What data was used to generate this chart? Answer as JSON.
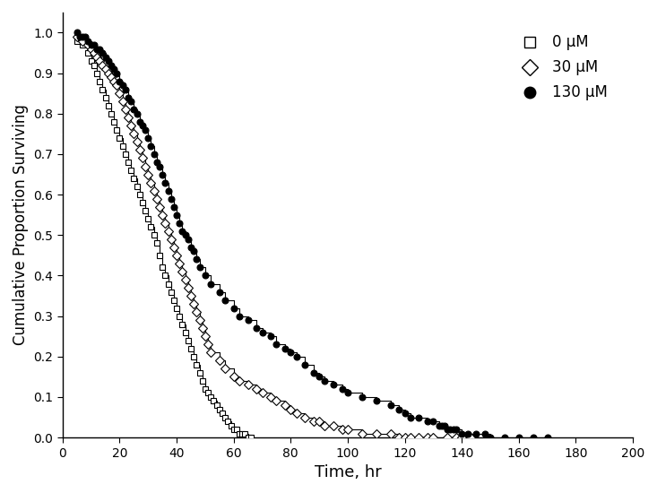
{
  "title": "",
  "xlabel": "Time, hr",
  "ylabel": "Cumulative Proportion Surviving",
  "xlim": [
    0,
    200
  ],
  "ylim": [
    0,
    1.05
  ],
  "xticks": [
    0,
    20,
    40,
    60,
    80,
    100,
    120,
    140,
    160,
    180,
    200
  ],
  "yticks": [
    0.0,
    0.1,
    0.2,
    0.3,
    0.4,
    0.5,
    0.6,
    0.7,
    0.8,
    0.9,
    1.0
  ],
  "legend_labels": [
    "0 μM",
    "30 μM",
    "130 μM"
  ],
  "legend_markers": [
    "s",
    "D",
    "o"
  ],
  "legend_markerfacecolors": [
    "white",
    "white",
    "black"
  ],
  "background_color": "#ffffff",
  "group0_times": [
    5,
    7,
    9,
    10,
    11,
    12,
    13,
    14,
    15,
    16,
    17,
    18,
    19,
    20,
    21,
    22,
    23,
    24,
    25,
    26,
    27,
    28,
    29,
    30,
    31,
    32,
    33,
    34,
    35,
    36,
    37,
    38,
    39,
    40,
    41,
    42,
    43,
    44,
    45,
    46,
    47,
    48,
    49,
    50,
    51,
    52,
    53,
    54,
    55,
    56,
    57,
    58,
    59,
    60,
    61,
    62,
    63,
    64,
    65,
    66
  ],
  "group0_surv": [
    0.98,
    0.97,
    0.95,
    0.93,
    0.92,
    0.9,
    0.88,
    0.86,
    0.84,
    0.82,
    0.8,
    0.78,
    0.76,
    0.74,
    0.72,
    0.7,
    0.68,
    0.66,
    0.64,
    0.62,
    0.6,
    0.58,
    0.56,
    0.54,
    0.52,
    0.5,
    0.48,
    0.45,
    0.42,
    0.4,
    0.38,
    0.36,
    0.34,
    0.32,
    0.3,
    0.28,
    0.26,
    0.24,
    0.22,
    0.2,
    0.18,
    0.16,
    0.14,
    0.12,
    0.11,
    0.1,
    0.09,
    0.08,
    0.07,
    0.06,
    0.05,
    0.04,
    0.03,
    0.02,
    0.02,
    0.01,
    0.01,
    0.01,
    0.0,
    0.0
  ],
  "group1_times": [
    5,
    7,
    9,
    10,
    11,
    12,
    13,
    14,
    15,
    16,
    17,
    18,
    19,
    20,
    21,
    22,
    23,
    24,
    25,
    26,
    27,
    28,
    29,
    30,
    31,
    32,
    33,
    34,
    35,
    36,
    37,
    38,
    39,
    40,
    41,
    42,
    43,
    44,
    45,
    46,
    47,
    48,
    49,
    50,
    51,
    52,
    55,
    57,
    60,
    62,
    65,
    68,
    70,
    73,
    75,
    78,
    80,
    82,
    85,
    88,
    90,
    92,
    95,
    98,
    100,
    105,
    110,
    115,
    118,
    120,
    122,
    125,
    128,
    130,
    135,
    138,
    140,
    143
  ],
  "group1_surv": [
    0.99,
    0.98,
    0.97,
    0.96,
    0.95,
    0.94,
    0.93,
    0.92,
    0.91,
    0.9,
    0.89,
    0.88,
    0.87,
    0.85,
    0.83,
    0.81,
    0.79,
    0.77,
    0.75,
    0.73,
    0.71,
    0.69,
    0.67,
    0.65,
    0.63,
    0.61,
    0.59,
    0.57,
    0.55,
    0.53,
    0.51,
    0.49,
    0.47,
    0.45,
    0.43,
    0.41,
    0.39,
    0.37,
    0.35,
    0.33,
    0.31,
    0.29,
    0.27,
    0.25,
    0.23,
    0.21,
    0.19,
    0.17,
    0.15,
    0.14,
    0.13,
    0.12,
    0.11,
    0.1,
    0.09,
    0.08,
    0.07,
    0.06,
    0.05,
    0.04,
    0.04,
    0.03,
    0.03,
    0.02,
    0.02,
    0.01,
    0.01,
    0.01,
    0.0,
    0.0,
    0.0,
    0.0,
    0.0,
    0.0,
    0.0,
    0.0,
    0.0,
    0.0
  ],
  "group2_times": [
    5,
    6,
    7,
    8,
    9,
    10,
    11,
    12,
    13,
    14,
    15,
    16,
    17,
    18,
    19,
    20,
    21,
    22,
    23,
    24,
    25,
    26,
    27,
    28,
    29,
    30,
    31,
    32,
    33,
    34,
    35,
    36,
    37,
    38,
    39,
    40,
    41,
    42,
    43,
    44,
    45,
    46,
    47,
    48,
    50,
    52,
    55,
    57,
    60,
    62,
    65,
    68,
    70,
    73,
    75,
    78,
    80,
    82,
    85,
    88,
    90,
    92,
    95,
    98,
    100,
    105,
    110,
    115,
    118,
    120,
    122,
    125,
    128,
    130,
    132,
    133,
    134,
    135,
    136,
    137,
    138,
    140,
    142,
    145,
    148,
    150,
    155,
    160,
    165,
    170
  ],
  "group2_surv": [
    1.0,
    0.99,
    0.99,
    0.99,
    0.98,
    0.97,
    0.97,
    0.96,
    0.96,
    0.95,
    0.94,
    0.93,
    0.92,
    0.91,
    0.9,
    0.88,
    0.87,
    0.86,
    0.84,
    0.83,
    0.81,
    0.8,
    0.78,
    0.77,
    0.76,
    0.74,
    0.72,
    0.7,
    0.68,
    0.67,
    0.65,
    0.63,
    0.61,
    0.59,
    0.57,
    0.55,
    0.53,
    0.51,
    0.5,
    0.49,
    0.47,
    0.46,
    0.44,
    0.42,
    0.4,
    0.38,
    0.36,
    0.34,
    0.32,
    0.3,
    0.29,
    0.27,
    0.26,
    0.25,
    0.23,
    0.22,
    0.21,
    0.2,
    0.18,
    0.16,
    0.15,
    0.14,
    0.13,
    0.12,
    0.11,
    0.1,
    0.09,
    0.08,
    0.07,
    0.06,
    0.05,
    0.05,
    0.04,
    0.04,
    0.03,
    0.03,
    0.03,
    0.02,
    0.02,
    0.02,
    0.02,
    0.01,
    0.01,
    0.01,
    0.01,
    0.0,
    0.0,
    0.0,
    0.0,
    0.0
  ]
}
